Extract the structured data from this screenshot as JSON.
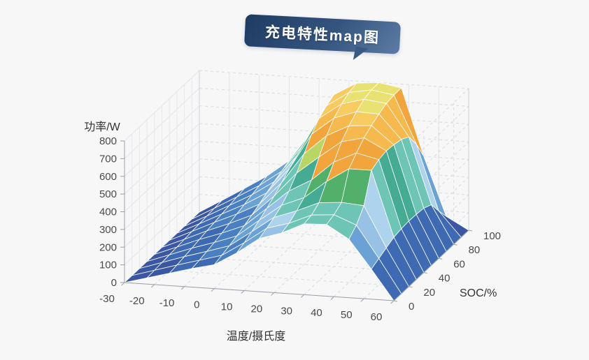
{
  "page": {
    "background": "#f7f7f8"
  },
  "title": {
    "text": "充电特性map图"
  },
  "chart_data": {
    "type": "surface",
    "title": "充电特性map图",
    "xlabel": "温度/摄氏度",
    "ylabel": "SOC/%",
    "zlabel": "功率/W",
    "xlim": [
      -30,
      60
    ],
    "ylim": [
      0,
      100
    ],
    "zlim": [
      0,
      800
    ],
    "x_ticks": [
      -30,
      -20,
      -10,
      0,
      10,
      20,
      30,
      40,
      50,
      60
    ],
    "y_ticks": [
      0,
      20,
      40,
      60,
      80,
      100
    ],
    "z_ticks": [
      0,
      100,
      200,
      300,
      400,
      500,
      600,
      700,
      800
    ],
    "temperature": [
      -30,
      -22.5,
      -15,
      -7.5,
      0,
      7.5,
      15,
      22.5,
      30,
      37.5,
      45,
      52.5,
      60
    ],
    "soc": [
      0,
      10,
      20,
      30,
      40,
      50,
      60,
      70,
      80,
      90,
      100
    ],
    "power": [
      [
        0,
        35,
        70,
        105,
        135,
        210,
        300,
        340,
        400,
        405,
        330,
        170,
        0
      ],
      [
        0,
        38,
        76,
        112,
        148,
        228,
        318,
        355,
        410,
        420,
        370,
        190,
        0
      ],
      [
        0,
        42,
        84,
        122,
        162,
        250,
        340,
        385,
        440,
        450,
        440,
        210,
        0
      ],
      [
        0,
        46,
        92,
        133,
        178,
        275,
        368,
        420,
        520,
        600,
        600,
        230,
        0
      ],
      [
        0,
        50,
        101,
        146,
        196,
        302,
        410,
        480,
        590,
        650,
        620,
        238,
        0
      ],
      [
        0,
        54,
        110,
        160,
        216,
        332,
        470,
        570,
        665,
        695,
        630,
        242,
        0
      ],
      [
        0,
        58,
        118,
        174,
        238,
        368,
        540,
        650,
        715,
        725,
        625,
        240,
        0
      ],
      [
        0,
        62,
        126,
        188,
        262,
        405,
        610,
        710,
        755,
        750,
        615,
        235,
        0
      ],
      [
        0,
        66,
        134,
        202,
        285,
        440,
        660,
        750,
        785,
        770,
        590,
        215,
        0
      ],
      [
        0,
        70,
        142,
        215,
        305,
        468,
        692,
        775,
        798,
        778,
        510,
        140,
        0
      ],
      [
        0,
        74,
        150,
        228,
        325,
        495,
        715,
        788,
        800,
        778,
        400,
        70,
        0
      ]
    ],
    "colormap": [
      {
        "max": 60,
        "color": "#3b57a3"
      },
      {
        "max": 135,
        "color": "#3e69b3"
      },
      {
        "max": 210,
        "color": "#4a80c2"
      },
      {
        "max": 285,
        "color": "#6ba2d5"
      },
      {
        "max": 340,
        "color": "#97c2e5"
      },
      {
        "max": 372,
        "color": "#aed3ec"
      },
      {
        "max": 430,
        "color": "#6ec5b5"
      },
      {
        "max": 500,
        "color": "#45ab92"
      },
      {
        "max": 540,
        "color": "#52b06b"
      },
      {
        "max": 575,
        "color": "#b9d664"
      },
      {
        "max": 658,
        "color": "#f3a53d"
      },
      {
        "max": 716,
        "color": "#f6b94e"
      },
      {
        "max": 760,
        "color": "#f8cb61"
      },
      {
        "max": 801,
        "color": "#eae173"
      }
    ],
    "wireframe_color": "#ffffff",
    "grid_line_color": "#d9dbe0",
    "axis_line_color": "#9aa0a8"
  }
}
